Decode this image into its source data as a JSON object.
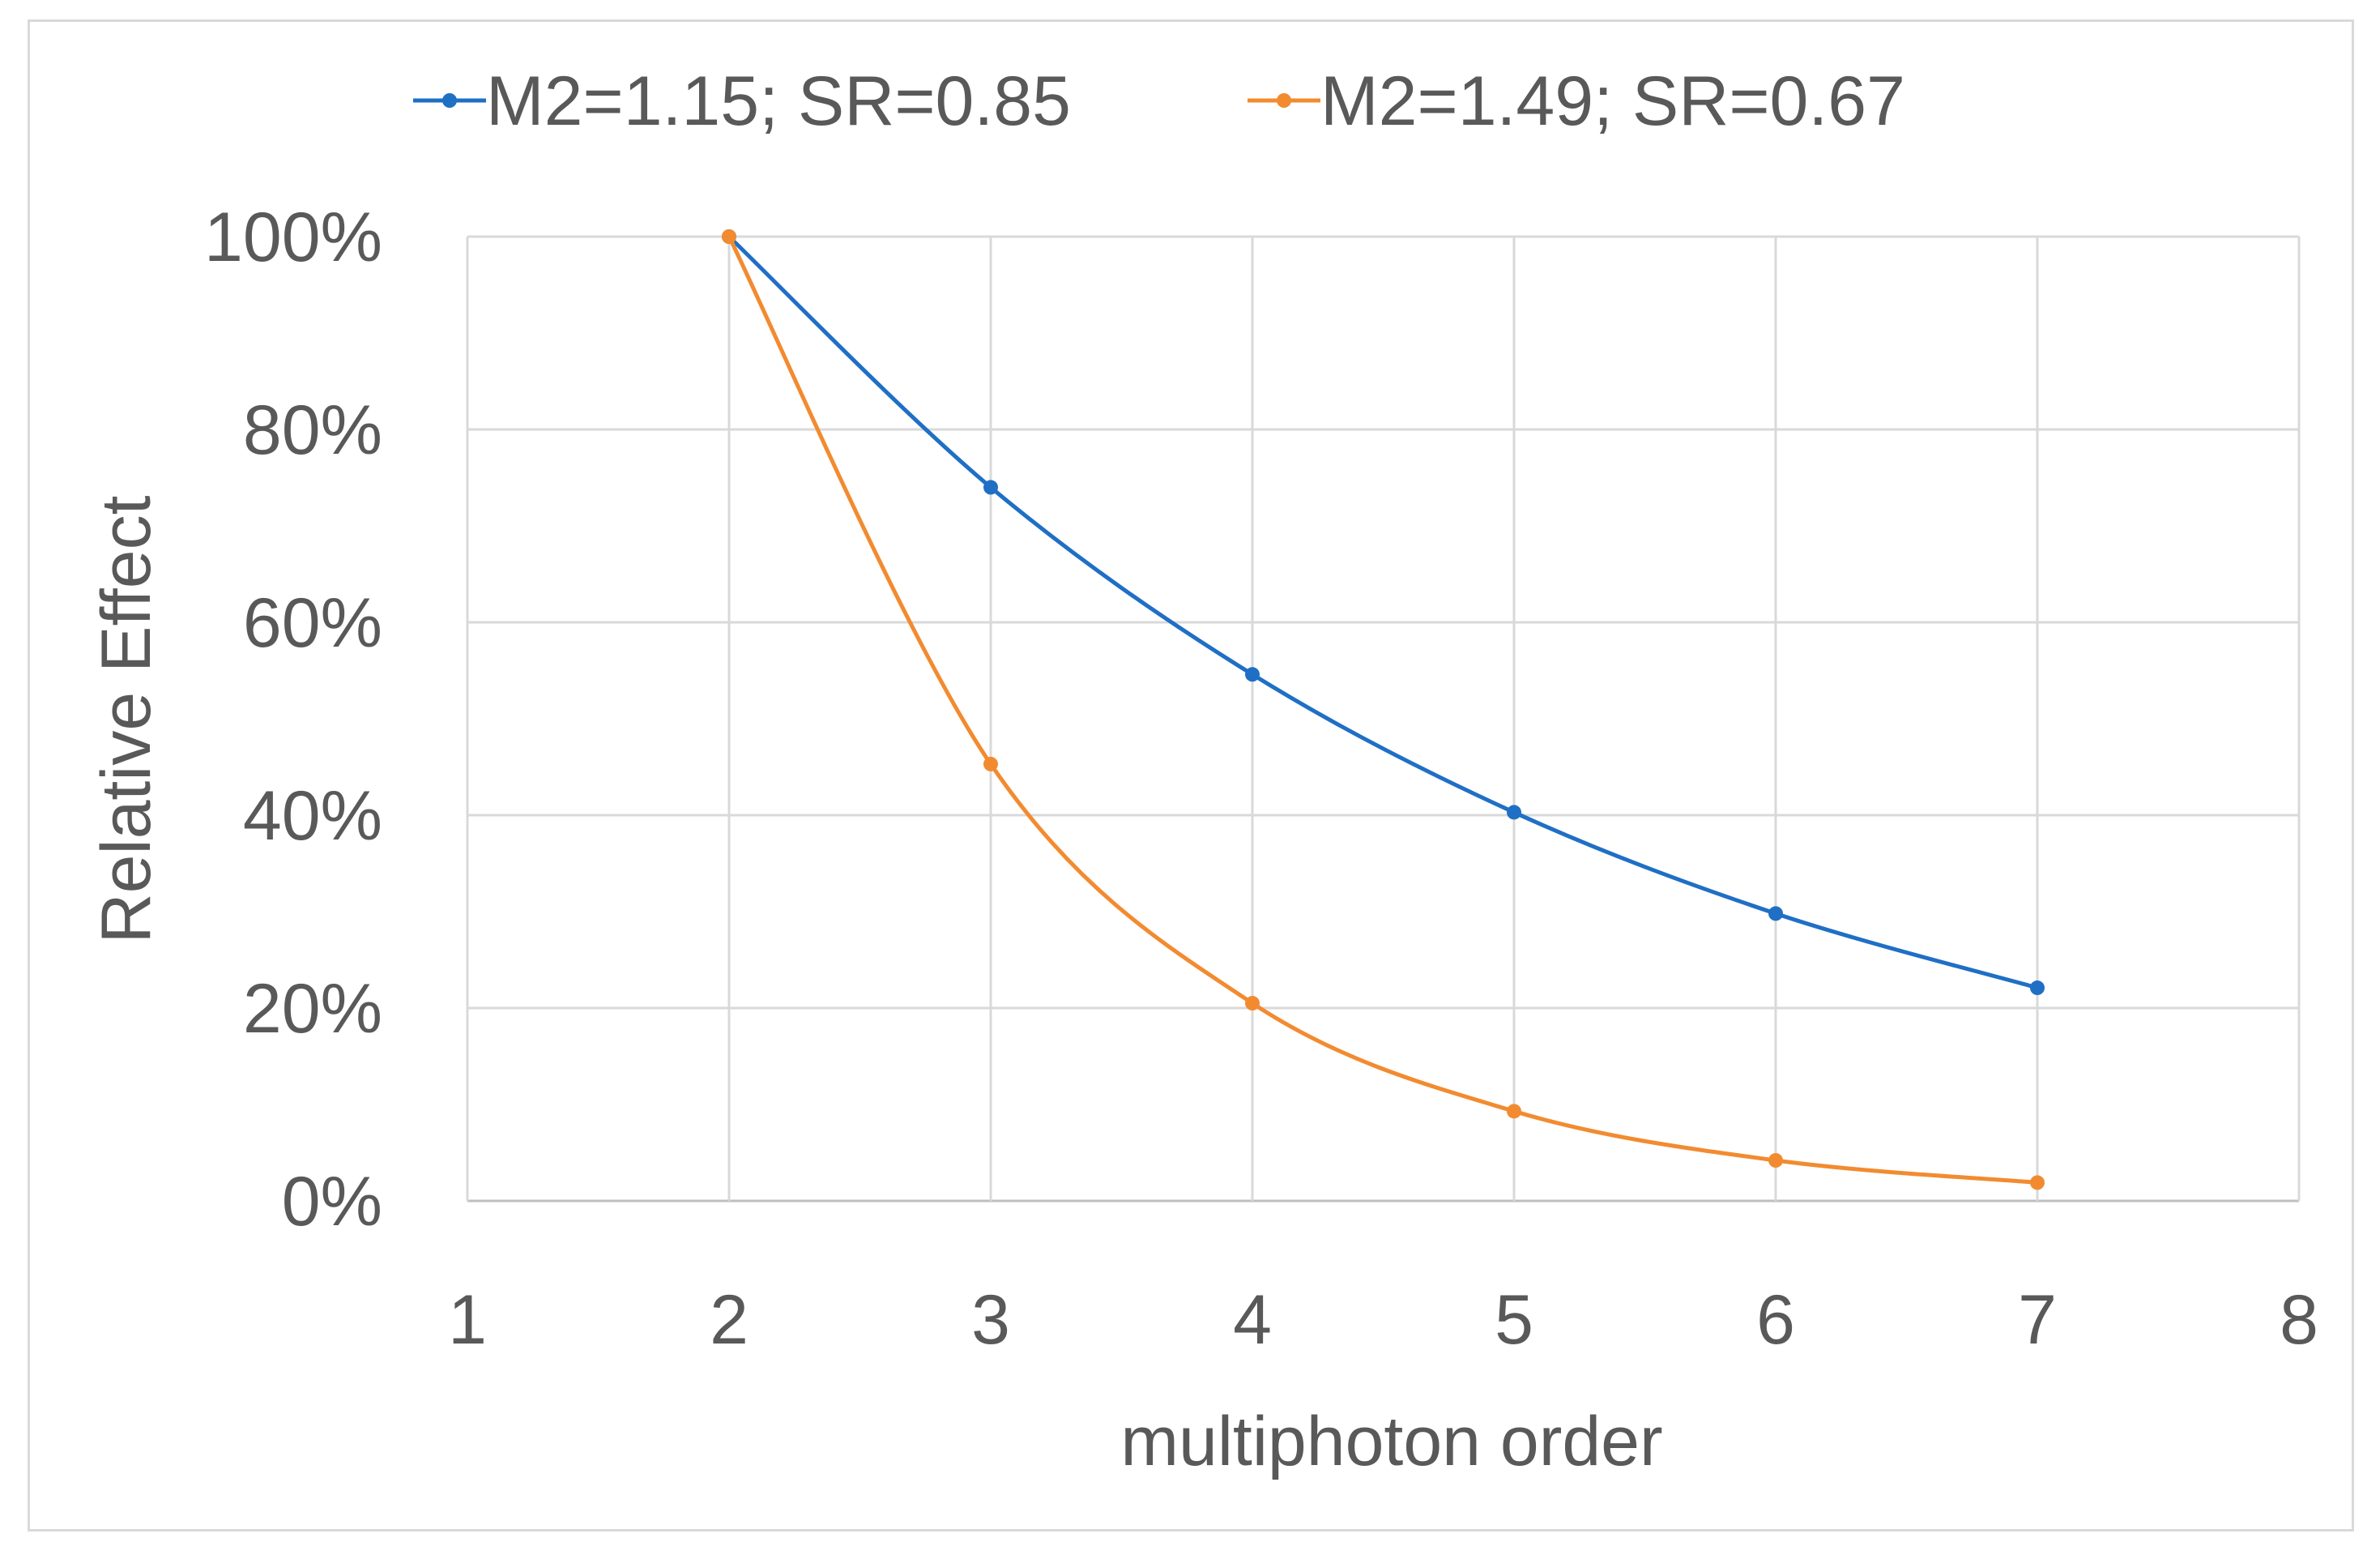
{
  "chart_data": {
    "type": "line",
    "title": "",
    "xlabel": "multiphoton order",
    "ylabel": "Relative Effect",
    "xlim": [
      1,
      8
    ],
    "ylim": [
      0,
      100
    ],
    "x_ticks": [
      1,
      2,
      3,
      4,
      5,
      6,
      7,
      8
    ],
    "y_ticks": [
      0,
      20,
      40,
      60,
      80,
      100
    ],
    "y_tick_labels": [
      "0%",
      "20%",
      "40%",
      "60%",
      "80%",
      "100%"
    ],
    "grid": true,
    "legend_position": "top",
    "smooth": true,
    "series": [
      {
        "name": "M2=1.15; SR=0.85",
        "color": "#1f6fc5",
        "x": [
          2,
          3,
          4,
          5,
          6,
          7
        ],
        "values": [
          100,
          74,
          54.6,
          40.3,
          29.8,
          22.1
        ]
      },
      {
        "name": "M2=1.49; SR=0.67",
        "color": "#f28b30",
        "x": [
          2,
          3,
          4,
          5,
          6,
          7
        ],
        "values": [
          100,
          45.3,
          20.5,
          9.3,
          4.2,
          1.9
        ]
      }
    ]
  }
}
